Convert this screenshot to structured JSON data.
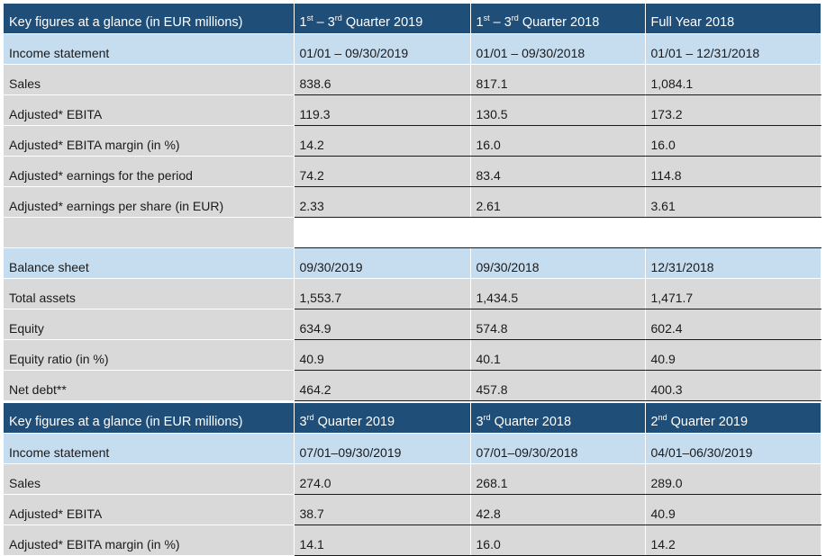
{
  "table1": {
    "header": {
      "title": "Key figures at a glance (in EUR millions)",
      "col1": {
        "pre": "1",
        "sup1": "st",
        "mid": " – 3",
        "sup2": "rd",
        "post": " Quarter 2019"
      },
      "col2": {
        "pre": "1",
        "sup1": "st",
        "mid": " – 3",
        "sup2": "rd",
        "post": " Quarter 2018"
      },
      "col3": "Full Year 2018"
    },
    "income_statement": {
      "label": "Income statement",
      "v1": "01/01 – 09/30/2019",
      "v2": "01/01 – 09/30/2018",
      "v3": "01/01 – 12/31/2018"
    },
    "rows": [
      {
        "label": "Sales",
        "v1": "838.6",
        "v2": "817.1",
        "v3": "1,084.1"
      },
      {
        "label": "Adjusted* EBITA",
        "v1": "119.3",
        "v2": "130.5",
        "v3": "173.2"
      },
      {
        "label": "Adjusted* EBITA margin (in %)",
        "v1": "14.2",
        "v2": "16.0",
        "v3": "16.0"
      },
      {
        "label": "Adjusted* earnings for the period",
        "v1": "74.2",
        "v2": "83.4",
        "v3": "114.8"
      },
      {
        "label": "Adjusted* earnings per share (in EUR)",
        "v1": "2.33",
        "v2": "2.61",
        "v3": "3.61"
      }
    ],
    "balance_sheet": {
      "label": "Balance sheet",
      "v1": "09/30/2019",
      "v2": "09/30/2018",
      "v3": "12/31/2018"
    },
    "rows2": [
      {
        "label": "Total assets",
        "v1": "1,553.7",
        "v2": "1,434.5",
        "v3": "1,471.7"
      },
      {
        "label": "Equity",
        "v1": "634.9",
        "v2": "574.8",
        "v3": "602.4"
      },
      {
        "label": "Equity ratio (in %)",
        "v1": "40.9",
        "v2": "40.1",
        "v3": "40.9"
      },
      {
        "label": "Net debt**",
        "v1": "464.2",
        "v2": "457.8",
        "v3": "400.3"
      }
    ]
  },
  "table2": {
    "header": {
      "title": "Key figures at a glance (in EUR millions)",
      "col1": {
        "pre": "3",
        "sup": "rd",
        "post": " Quarter 2019"
      },
      "col2": {
        "pre": "3",
        "sup": "rd",
        "post": " Quarter 2018"
      },
      "col3": {
        "pre": "2",
        "sup": "nd",
        "post": " Quarter 2019"
      }
    },
    "income_statement": {
      "label": "Income statement",
      "v1": "07/01–09/30/2019",
      "v2": "07/01–09/30/2018",
      "v3": "04/01–06/30/2019"
    },
    "rows": [
      {
        "label": "Sales",
        "v1": "274.0",
        "v2": "268.1",
        "v3": "289.0"
      },
      {
        "label": "Adjusted* EBITA",
        "v1": "38.7",
        "v2": "42.8",
        "v3": "40.9"
      },
      {
        "label": "Adjusted* EBITA margin (in %)",
        "v1": "14.1",
        "v2": "16.0",
        "v3": "14.2"
      }
    ]
  }
}
